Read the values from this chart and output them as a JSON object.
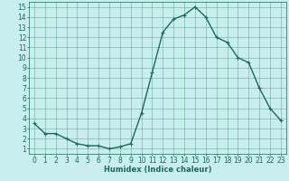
{
  "x": [
    0,
    1,
    2,
    3,
    4,
    5,
    6,
    7,
    8,
    9,
    10,
    11,
    12,
    13,
    14,
    15,
    16,
    17,
    18,
    19,
    20,
    21,
    22,
    23
  ],
  "y": [
    3.5,
    2.5,
    2.5,
    2.0,
    1.5,
    1.3,
    1.3,
    1.0,
    1.2,
    1.5,
    4.5,
    8.5,
    12.5,
    13.8,
    14.2,
    15.0,
    14.0,
    12.0,
    11.5,
    10.0,
    9.5,
    7.0,
    5.0,
    3.8
  ],
  "line_color": "#1a6b5a",
  "marker": "+",
  "markersize": 3,
  "linewidth": 1.0,
  "bg_color": "#c8eeee",
  "grid_color": "#5a9a8a",
  "xlabel": "Humidex (Indice chaleur)",
  "xlabel_fontsize": 6,
  "tick_fontsize": 5.5,
  "xlim": [
    -0.5,
    23.5
  ],
  "ylim": [
    0.5,
    15.5
  ],
  "yticks": [
    1,
    2,
    3,
    4,
    5,
    6,
    7,
    8,
    9,
    10,
    11,
    12,
    13,
    14,
    15
  ],
  "xticks": [
    0,
    1,
    2,
    3,
    4,
    5,
    6,
    7,
    8,
    9,
    10,
    11,
    12,
    13,
    14,
    15,
    16,
    17,
    18,
    19,
    20,
    21,
    22,
    23
  ]
}
